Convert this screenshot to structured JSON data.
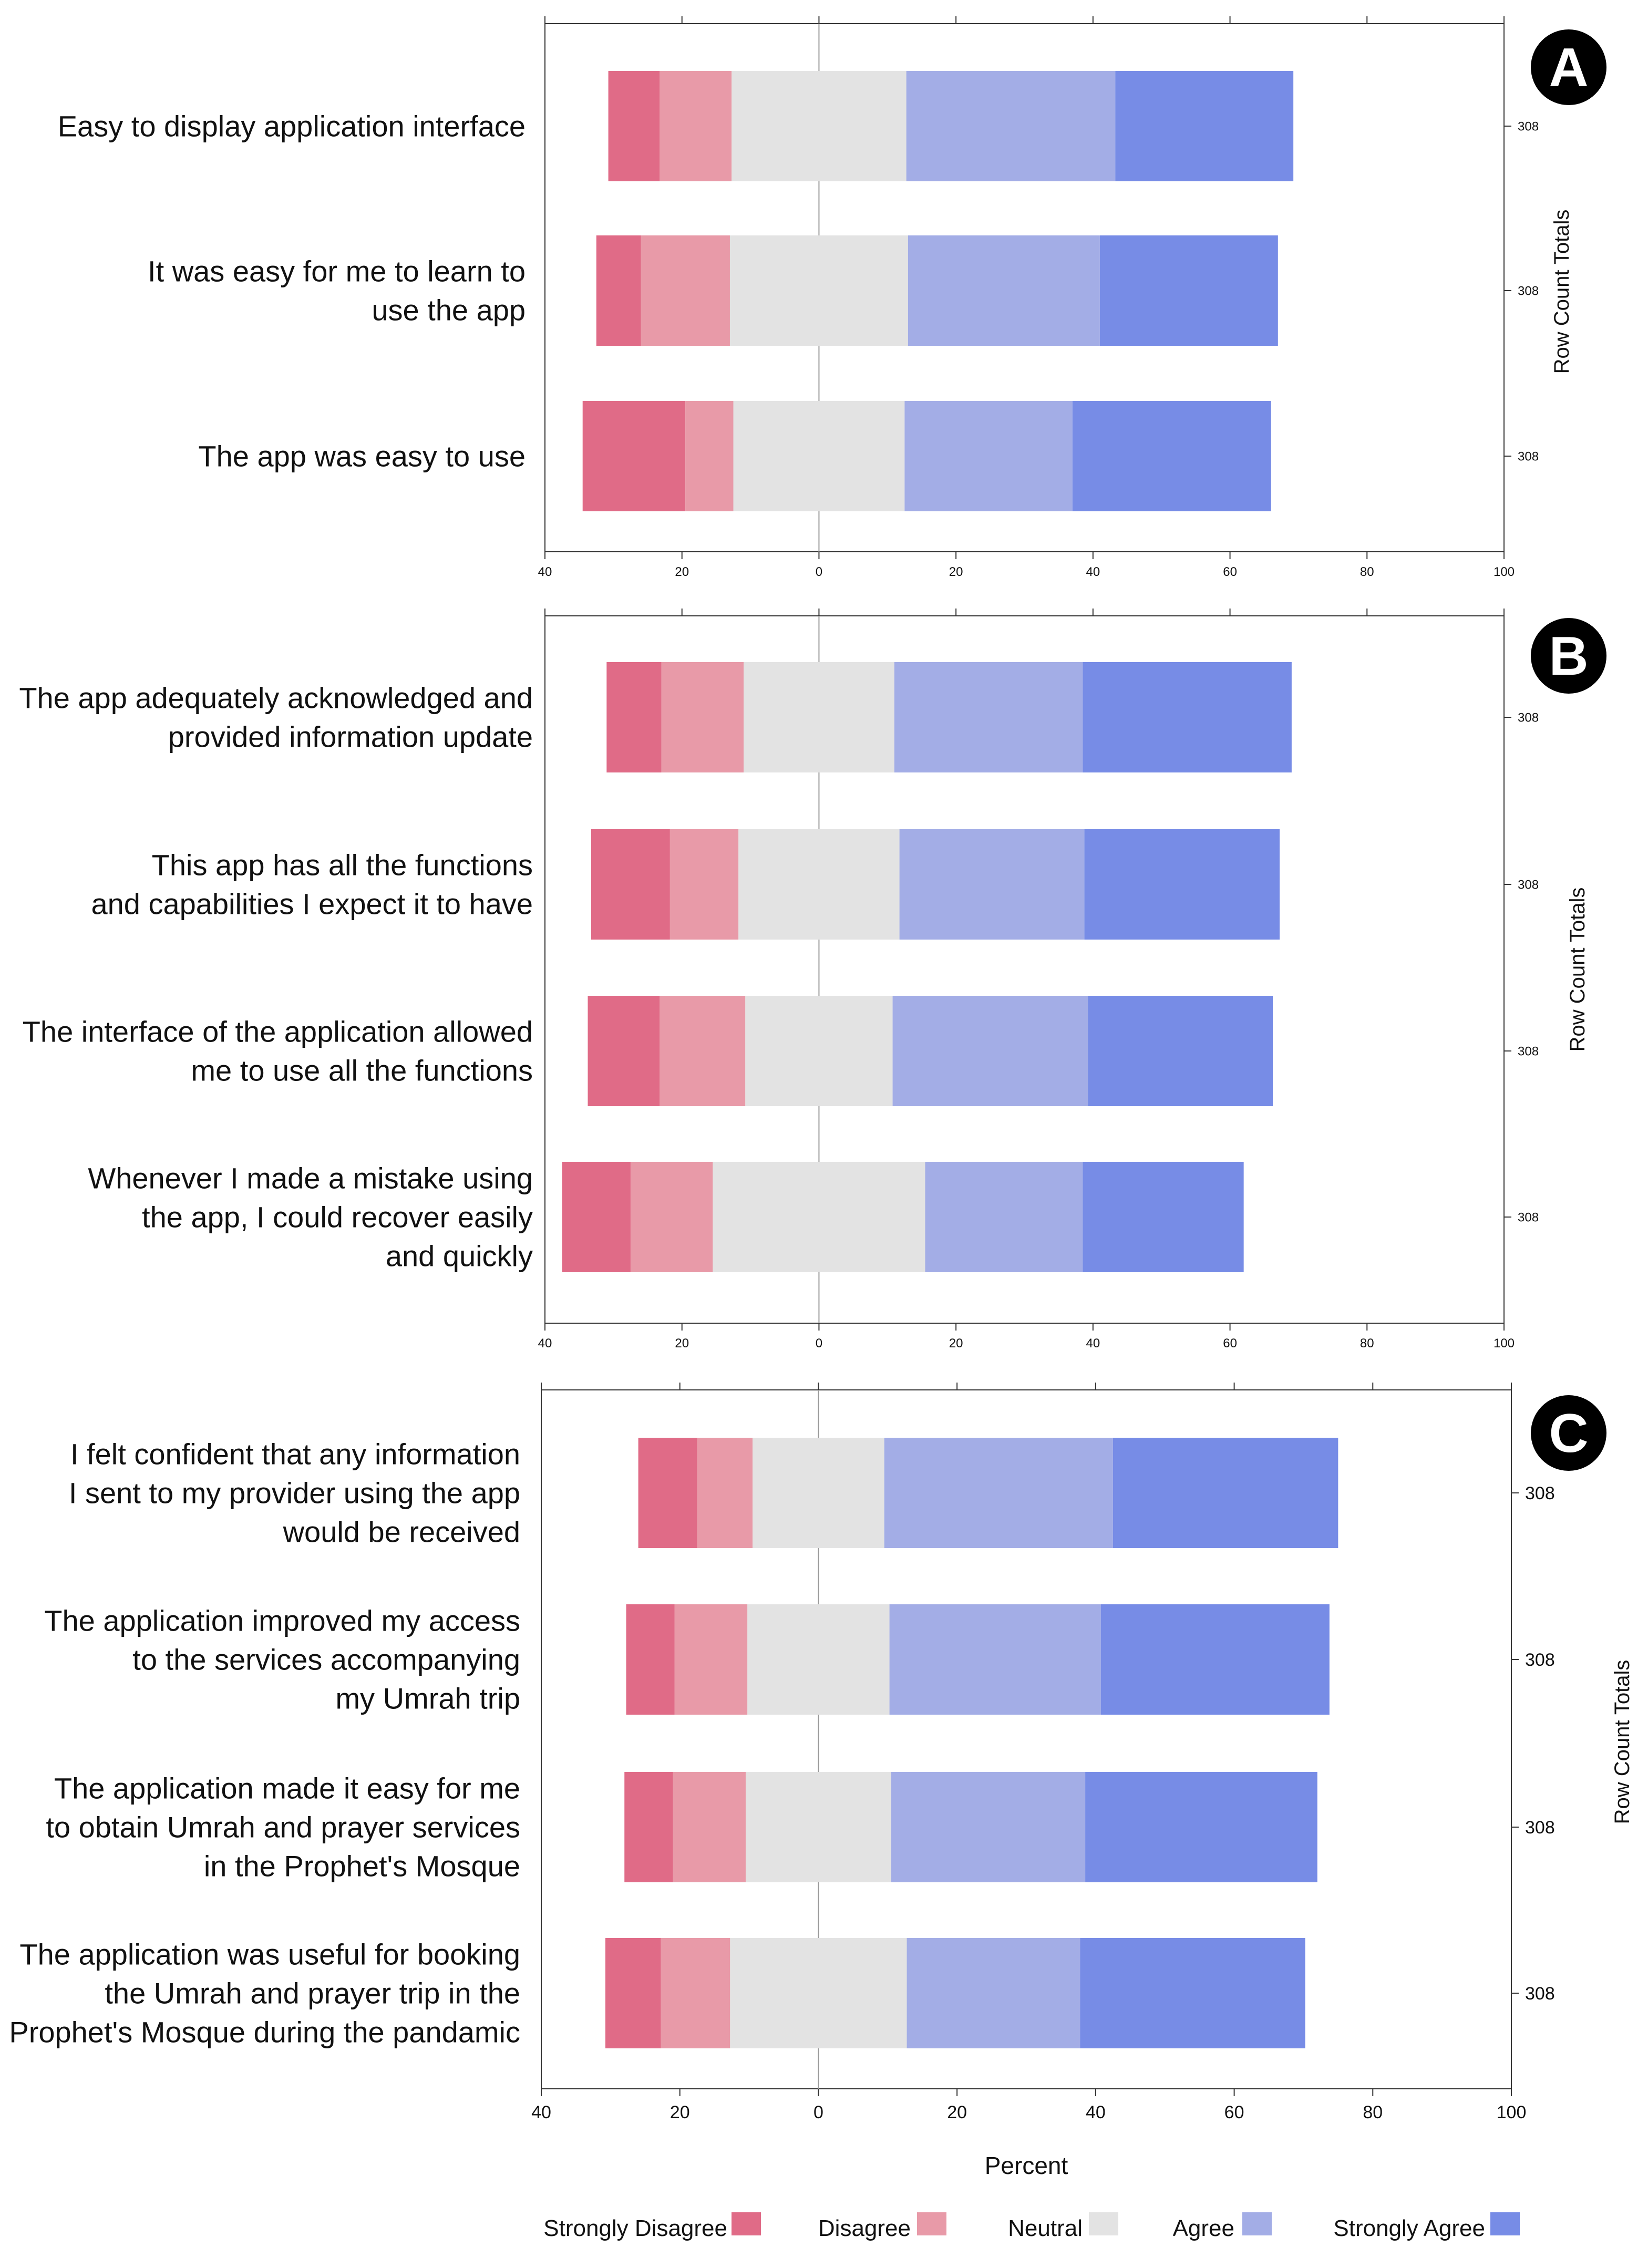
{
  "colors": {
    "strongly_disagree": "#e06b87",
    "disagree": "#e89aa8",
    "neutral": "#e3e3e3",
    "agree": "#a3ade6",
    "strongly_agree": "#778ce6"
  },
  "legend": {
    "items": [
      "Strongly Disagree",
      "Disagree",
      "Neutral",
      "Agree",
      "Strongly Agree"
    ],
    "color_keys": [
      "strongly_disagree",
      "disagree",
      "neutral",
      "agree",
      "strongly_agree"
    ]
  },
  "chart_data": [
    {
      "type": "bar",
      "subtype": "diverging-stacked-likert",
      "panel": "A",
      "xlim": [
        -40,
        100
      ],
      "ticks": [
        -40,
        -20,
        0,
        20,
        40,
        60,
        80,
        100
      ],
      "tick_labels": [
        "40",
        "20",
        "0",
        "20",
        "40",
        "60",
        "80",
        "100"
      ],
      "right_axis_label": "Row Count Totals",
      "categories": [
        {
          "lines": [
            "Easy to display application interface"
          ],
          "total": "308"
        },
        {
          "lines": [
            "It was easy for me to learn to",
            "use the app"
          ],
          "total": "308"
        },
        {
          "lines": [
            "The app was easy to use"
          ],
          "total": "308"
        }
      ],
      "series": [
        {
          "name": "Strongly Disagree",
          "values": [
            7.5,
            6.5,
            15
          ]
        },
        {
          "name": "Disagree",
          "values": [
            10.5,
            13,
            7
          ]
        },
        {
          "name": "Neutral",
          "values": [
            25.5,
            26,
            25
          ]
        },
        {
          "name": "Agree",
          "values": [
            30.5,
            28,
            24.5
          ]
        },
        {
          "name": "Strongly Agree",
          "values": [
            26,
            26,
            29
          ]
        }
      ]
    },
    {
      "type": "bar",
      "subtype": "diverging-stacked-likert",
      "panel": "B",
      "xlim": [
        -40,
        100
      ],
      "ticks": [
        -40,
        -20,
        0,
        20,
        40,
        60,
        80,
        100
      ],
      "tick_labels": [
        "40",
        "20",
        "0",
        "20",
        "40",
        "60",
        "80",
        "100"
      ],
      "right_axis_label": "Row Count Totals",
      "categories": [
        {
          "lines": [
            "The app adequately acknowledged and",
            "provided information update"
          ],
          "total": "308"
        },
        {
          "lines": [
            "This app has all the functions",
            "and capabilities I expect it to have"
          ],
          "total": "308"
        },
        {
          "lines": [
            "The interface of the application allowed",
            "me to use all the functions"
          ],
          "total": "308"
        },
        {
          "lines": [
            "Whenever I made a mistake using",
            "the app, I could recover easily",
            "and quickly"
          ],
          "total": "308"
        }
      ],
      "series": [
        {
          "name": "Strongly Disagree",
          "values": [
            8,
            11.5,
            10.5,
            10
          ]
        },
        {
          "name": "Disagree",
          "values": [
            12,
            10,
            12.5,
            12
          ]
        },
        {
          "name": "Neutral",
          "values": [
            22,
            23.5,
            21.5,
            31
          ]
        },
        {
          "name": "Agree",
          "values": [
            27.5,
            27,
            28.5,
            23
          ]
        },
        {
          "name": "Strongly Agree",
          "values": [
            30.5,
            28.5,
            27,
            23.5
          ]
        }
      ]
    },
    {
      "type": "bar",
      "subtype": "diverging-stacked-likert",
      "panel": "C",
      "xlim": [
        -40,
        100
      ],
      "ticks": [
        -40,
        -20,
        0,
        20,
        40,
        60,
        80,
        100
      ],
      "tick_labels": [
        "40",
        "20",
        "0",
        "20",
        "40",
        "60",
        "80",
        "100"
      ],
      "xlabel": "Percent",
      "right_axis_label": "Row Count Totals",
      "categories": [
        {
          "lines": [
            "I felt confident that any information",
            "I sent to my provider using the app",
            "would be received"
          ],
          "total": "308"
        },
        {
          "lines": [
            "The application improved my access",
            "to the services accompanying",
            "my Umrah trip"
          ],
          "total": "308"
        },
        {
          "lines": [
            "The application made it easy for me",
            "to obtain Umrah and prayer services",
            "in the Prophet's Mosque"
          ],
          "total": "308"
        },
        {
          "lines": [
            "The application was useful for booking",
            "the Umrah and prayer trip in the",
            "Prophet's Mosque during the pandamic"
          ],
          "total": "308"
        }
      ],
      "series": [
        {
          "name": "Strongly Disagree",
          "values": [
            8.5,
            7,
            7,
            8
          ]
        },
        {
          "name": "Disagree",
          "values": [
            8,
            10.5,
            10.5,
            10
          ]
        },
        {
          "name": "Neutral",
          "values": [
            19,
            20.5,
            21,
            25.5
          ]
        },
        {
          "name": "Agree",
          "values": [
            33,
            30.5,
            28,
            25
          ]
        },
        {
          "name": "Strongly Agree",
          "values": [
            32.5,
            33,
            33.5,
            32.5
          ]
        }
      ]
    }
  ],
  "panel_badges": [
    "A",
    "B",
    "C"
  ]
}
